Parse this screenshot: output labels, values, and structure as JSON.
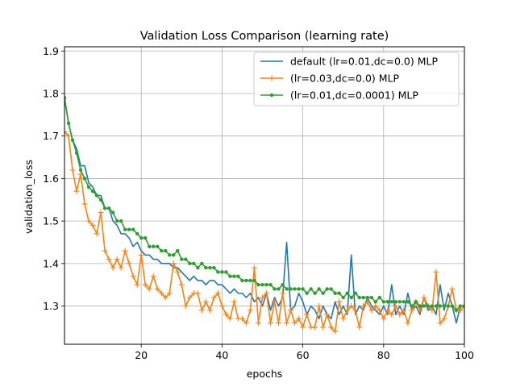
{
  "chart_data": {
    "type": "line",
    "title": "Validation Loss Comparison (learning rate)",
    "xlabel": "epochs",
    "ylabel": "validation_loss",
    "xlim": [
      1,
      100
    ],
    "ylim": [
      1.21,
      1.91
    ],
    "xticks": [
      20,
      40,
      60,
      80,
      100
    ],
    "yticks": [
      1.3,
      1.4,
      1.5,
      1.6,
      1.7,
      1.8,
      1.9
    ],
    "grid": true,
    "legend_position": "top-right",
    "series": [
      {
        "name": "default (lr=0.01,dc=0.0) MLP",
        "color": "#1f77b4",
        "marker": "none",
        "x": [
          1,
          2,
          3,
          4,
          5,
          6,
          7,
          8,
          9,
          10,
          11,
          12,
          13,
          14,
          15,
          16,
          17,
          18,
          19,
          20,
          21,
          22,
          23,
          24,
          25,
          26,
          27,
          28,
          29,
          30,
          31,
          32,
          33,
          34,
          35,
          36,
          37,
          38,
          39,
          40,
          41,
          42,
          43,
          44,
          45,
          46,
          47,
          48,
          49,
          50,
          51,
          52,
          53,
          54,
          55,
          56,
          57,
          58,
          59,
          60,
          61,
          62,
          63,
          64,
          65,
          66,
          67,
          68,
          69,
          70,
          71,
          72,
          73,
          74,
          75,
          76,
          77,
          78,
          79,
          80,
          81,
          82,
          83,
          84,
          85,
          86,
          87,
          88,
          89,
          90,
          91,
          92,
          93,
          94,
          95,
          96,
          97,
          98,
          99,
          100
        ],
        "values": [
          1.79,
          1.73,
          1.69,
          1.67,
          1.63,
          1.63,
          1.59,
          1.58,
          1.56,
          1.56,
          1.53,
          1.53,
          1.5,
          1.49,
          1.47,
          1.47,
          1.46,
          1.44,
          1.45,
          1.43,
          1.42,
          1.42,
          1.41,
          1.41,
          1.4,
          1.4,
          1.4,
          1.39,
          1.39,
          1.38,
          1.37,
          1.36,
          1.37,
          1.36,
          1.36,
          1.35,
          1.36,
          1.36,
          1.35,
          1.35,
          1.34,
          1.33,
          1.34,
          1.33,
          1.33,
          1.32,
          1.33,
          1.31,
          1.32,
          1.3,
          1.33,
          1.29,
          1.32,
          1.3,
          1.32,
          1.45,
          1.29,
          1.3,
          1.33,
          1.31,
          1.28,
          1.3,
          1.29,
          1.27,
          1.3,
          1.28,
          1.27,
          1.31,
          1.28,
          1.3,
          1.28,
          1.42,
          1.28,
          1.3,
          1.29,
          1.32,
          1.3,
          1.29,
          1.28,
          1.3,
          1.28,
          1.35,
          1.28,
          1.3,
          1.28,
          1.33,
          1.29,
          1.3,
          1.28,
          1.32,
          1.29,
          1.3,
          1.28,
          1.35,
          1.29,
          1.33,
          1.3,
          1.26,
          1.3,
          1.3
        ]
      },
      {
        "name": "(lr=0.03,dc=0.0) MLP",
        "color": "#ff7f0e",
        "marker": "plus",
        "x": [
          1,
          2,
          3,
          4,
          5,
          6,
          7,
          8,
          9,
          10,
          11,
          12,
          13,
          14,
          15,
          16,
          17,
          18,
          19,
          20,
          21,
          22,
          23,
          24,
          25,
          26,
          27,
          28,
          29,
          30,
          31,
          32,
          33,
          34,
          35,
          36,
          37,
          38,
          39,
          40,
          41,
          42,
          43,
          44,
          45,
          46,
          47,
          48,
          49,
          50,
          51,
          52,
          53,
          54,
          55,
          56,
          57,
          58,
          59,
          60,
          61,
          62,
          63,
          64,
          65,
          66,
          67,
          68,
          69,
          70,
          71,
          72,
          73,
          74,
          75,
          76,
          77,
          78,
          79,
          80,
          81,
          82,
          83,
          84,
          85,
          86,
          87,
          88,
          89,
          90,
          91,
          92,
          93,
          94,
          95,
          96,
          97,
          98,
          99,
          100
        ],
        "values": [
          1.71,
          1.7,
          1.62,
          1.57,
          1.61,
          1.54,
          1.5,
          1.49,
          1.47,
          1.52,
          1.43,
          1.41,
          1.39,
          1.41,
          1.39,
          1.43,
          1.4,
          1.37,
          1.35,
          1.42,
          1.35,
          1.34,
          1.37,
          1.34,
          1.33,
          1.32,
          1.33,
          1.4,
          1.38,
          1.35,
          1.3,
          1.32,
          1.33,
          1.33,
          1.29,
          1.31,
          1.29,
          1.32,
          1.33,
          1.3,
          1.28,
          1.27,
          1.31,
          1.27,
          1.27,
          1.26,
          1.29,
          1.39,
          1.26,
          1.32,
          1.33,
          1.26,
          1.31,
          1.26,
          1.33,
          1.26,
          1.29,
          1.26,
          1.27,
          1.25,
          1.28,
          1.25,
          1.25,
          1.3,
          1.25,
          1.28,
          1.25,
          1.24,
          1.31,
          1.27,
          1.29,
          1.3,
          1.29,
          1.25,
          1.3,
          1.31,
          1.29,
          1.3,
          1.29,
          1.27,
          1.29,
          1.28,
          1.3,
          1.28,
          1.29,
          1.26,
          1.29,
          1.31,
          1.29,
          1.32,
          1.3,
          1.29,
          1.38,
          1.26,
          1.27,
          1.3,
          1.34,
          1.29,
          1.29,
          1.3
        ]
      },
      {
        "name": "(lr=0.01,dc=0.0001) MLP",
        "color": "#2ca02c",
        "marker": "dot",
        "x": [
          1,
          2,
          3,
          4,
          5,
          6,
          7,
          8,
          9,
          10,
          11,
          12,
          13,
          14,
          15,
          16,
          17,
          18,
          19,
          20,
          21,
          22,
          23,
          24,
          25,
          26,
          27,
          28,
          29,
          30,
          31,
          32,
          33,
          34,
          35,
          36,
          37,
          38,
          39,
          40,
          41,
          42,
          43,
          44,
          45,
          46,
          47,
          48,
          49,
          50,
          51,
          52,
          53,
          54,
          55,
          56,
          57,
          58,
          59,
          60,
          61,
          62,
          63,
          64,
          65,
          66,
          67,
          68,
          69,
          70,
          71,
          72,
          73,
          74,
          75,
          76,
          77,
          78,
          79,
          80,
          81,
          82,
          83,
          84,
          85,
          86,
          87,
          88,
          89,
          90,
          91,
          92,
          93,
          94,
          95,
          96,
          97,
          98,
          99,
          100
        ],
        "values": [
          1.79,
          1.73,
          1.69,
          1.66,
          1.62,
          1.6,
          1.58,
          1.57,
          1.56,
          1.55,
          1.53,
          1.53,
          1.52,
          1.5,
          1.5,
          1.48,
          1.48,
          1.48,
          1.47,
          1.46,
          1.46,
          1.44,
          1.44,
          1.44,
          1.43,
          1.43,
          1.42,
          1.42,
          1.43,
          1.41,
          1.41,
          1.4,
          1.4,
          1.39,
          1.4,
          1.39,
          1.39,
          1.39,
          1.38,
          1.38,
          1.38,
          1.37,
          1.37,
          1.37,
          1.36,
          1.36,
          1.36,
          1.36,
          1.35,
          1.35,
          1.35,
          1.35,
          1.34,
          1.34,
          1.35,
          1.34,
          1.34,
          1.34,
          1.34,
          1.34,
          1.33,
          1.34,
          1.33,
          1.34,
          1.33,
          1.34,
          1.34,
          1.33,
          1.33,
          1.32,
          1.33,
          1.32,
          1.33,
          1.32,
          1.32,
          1.32,
          1.32,
          1.31,
          1.32,
          1.31,
          1.31,
          1.31,
          1.31,
          1.31,
          1.31,
          1.31,
          1.3,
          1.31,
          1.3,
          1.3,
          1.3,
          1.3,
          1.3,
          1.3,
          1.3,
          1.3,
          1.3,
          1.29,
          1.3,
          1.3
        ]
      }
    ]
  }
}
